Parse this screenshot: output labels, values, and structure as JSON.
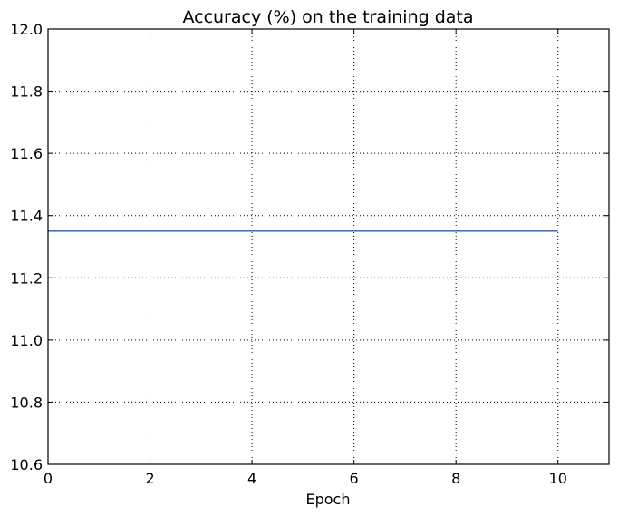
{
  "chart_data": {
    "type": "line",
    "title": "Accuracy (%) on the training data",
    "xlabel": "Epoch",
    "ylabel": "",
    "xlim": [
      0,
      11
    ],
    "ylim": [
      10.6,
      12.0
    ],
    "x_ticks": [
      0,
      2,
      4,
      6,
      8,
      10
    ],
    "x_tick_labels": [
      "0",
      "2",
      "4",
      "6",
      "8",
      "10"
    ],
    "y_ticks": [
      10.6,
      10.8,
      11.0,
      11.2,
      11.4,
      11.6,
      11.8,
      12.0
    ],
    "y_tick_labels": [
      "10.6",
      "10.8",
      "11.0",
      "11.2",
      "11.4",
      "11.6",
      "11.8",
      "12.0"
    ],
    "grid": true,
    "series": [
      {
        "color": "#1f5fb0",
        "x": [
          0,
          1,
          2,
          3,
          4,
          5,
          6,
          7,
          8,
          9,
          10
        ],
        "y": [
          11.35,
          11.35,
          11.35,
          11.35,
          11.35,
          11.35,
          11.35,
          11.35,
          11.35,
          11.35,
          11.35
        ]
      }
    ]
  }
}
